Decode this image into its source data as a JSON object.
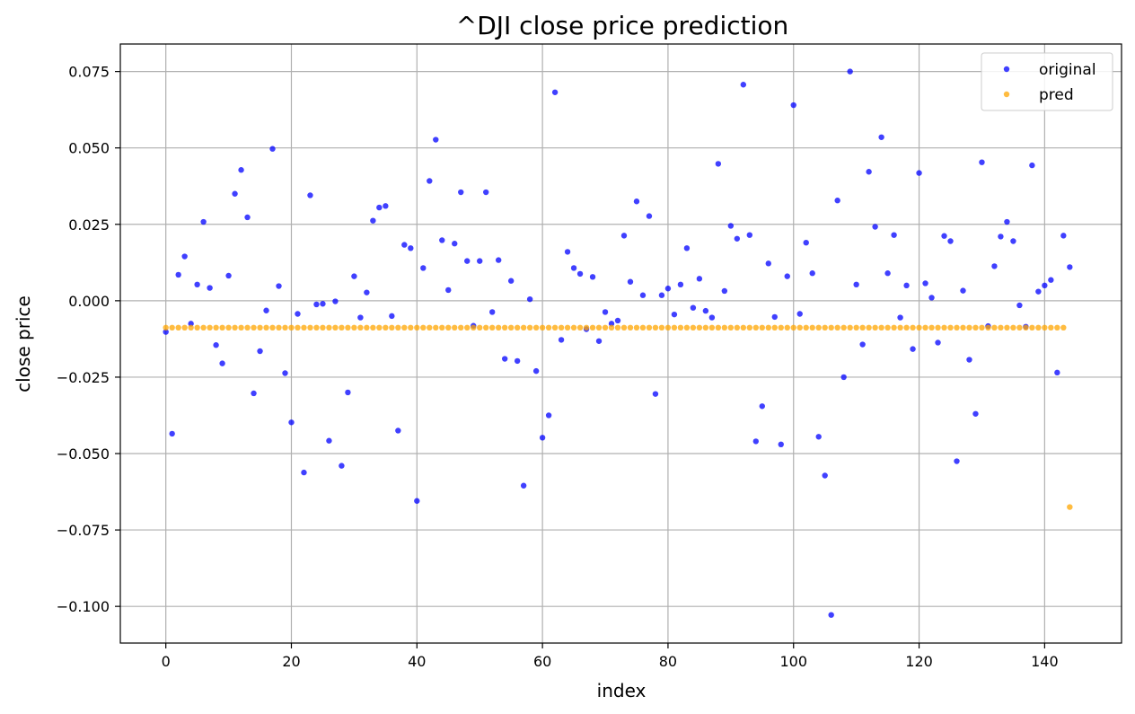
{
  "chart_data": {
    "type": "scatter",
    "title": "^DJI close price prediction",
    "xlabel": "index",
    "ylabel": "close price",
    "xlim": [
      -7.25,
      152.25
    ],
    "ylim": [
      -0.112,
      0.084
    ],
    "xticks": [
      0,
      20,
      40,
      60,
      80,
      100,
      120,
      140
    ],
    "xtick_labels": [
      "0",
      "20",
      "40",
      "60",
      "80",
      "100",
      "120",
      "140"
    ],
    "yticks": [
      0.075,
      0.05,
      0.025,
      0.0,
      -0.025,
      -0.05,
      -0.075,
      -0.1
    ],
    "ytick_labels": [
      "0.075",
      "0.050",
      "0.025",
      "0.000",
      "−0.025",
      "−0.050",
      "−0.075",
      "−0.100"
    ],
    "grid": true,
    "legend_position": "top-right",
    "series": [
      {
        "name": "original",
        "color": "#0000ff",
        "x": [
          0,
          1,
          2,
          3,
          4,
          5,
          6,
          7,
          8,
          9,
          10,
          11,
          12,
          13,
          14,
          15,
          16,
          17,
          18,
          19,
          20,
          21,
          22,
          23,
          24,
          25,
          26,
          27,
          28,
          29,
          30,
          31,
          32,
          33,
          34,
          35,
          36,
          37,
          38,
          39,
          40,
          41,
          42,
          43,
          44,
          45,
          46,
          47,
          48,
          49,
          50,
          51,
          52,
          53,
          54,
          55,
          56,
          57,
          58,
          59,
          60,
          61,
          62,
          63,
          64,
          65,
          66,
          67,
          68,
          69,
          70,
          71,
          72,
          73,
          74,
          75,
          76,
          77,
          78,
          79,
          80,
          81,
          82,
          83,
          84,
          85,
          86,
          87,
          88,
          89,
          90,
          91,
          92,
          93,
          94,
          95,
          96,
          97,
          98,
          99,
          100,
          101,
          102,
          103,
          104,
          105,
          106,
          107,
          108,
          109,
          110,
          111,
          112,
          113,
          114,
          115,
          116,
          117,
          118,
          119,
          120,
          121,
          122,
          123,
          124,
          125,
          126,
          127,
          128,
          129,
          130,
          131,
          132,
          133,
          134,
          135,
          136,
          137,
          138,
          139,
          140,
          141,
          142,
          143,
          144
        ],
        "y": [
          -0.0102,
          -0.0435,
          0.0085,
          0.0145,
          -0.0075,
          0.0053,
          0.0258,
          0.0042,
          -0.0145,
          -0.0205,
          0.0082,
          0.035,
          0.0428,
          0.0273,
          -0.0303,
          -0.0165,
          -0.0032,
          0.0497,
          0.0048,
          -0.0237,
          -0.0398,
          -0.0043,
          -0.0562,
          0.0345,
          -0.0012,
          -0.001,
          -0.0458,
          -0.0002,
          -0.054,
          -0.03,
          0.008,
          -0.0055,
          0.0027,
          0.0262,
          0.0305,
          0.031,
          -0.005,
          -0.0425,
          0.0183,
          0.0172,
          -0.0655,
          0.0107,
          0.0392,
          0.0527,
          0.0198,
          0.0035,
          0.0187,
          0.0355,
          0.013,
          -0.0082,
          0.013,
          0.0355,
          -0.0037,
          0.0133,
          -0.019,
          0.0065,
          -0.0197,
          -0.0605,
          0.0005,
          -0.023,
          -0.0448,
          -0.0375,
          0.0682,
          -0.0128,
          0.016,
          0.0107,
          0.0088,
          -0.0093,
          0.0078,
          -0.0132,
          -0.0037,
          -0.0075,
          -0.0065,
          0.0213,
          0.0062,
          0.0325,
          0.0018,
          0.0277,
          -0.0305,
          0.0018,
          0.004,
          -0.0045,
          0.0053,
          0.0172,
          -0.0023,
          0.0072,
          -0.0033,
          -0.0055,
          0.0448,
          0.0032,
          0.0245,
          0.0203,
          0.0707,
          0.0215,
          -0.046,
          -0.0345,
          0.0122,
          -0.0053,
          -0.047,
          0.008,
          0.064,
          -0.0043,
          0.019,
          0.009,
          -0.0445,
          -0.0572,
          -0.1028,
          0.0328,
          -0.025,
          0.075,
          0.0053,
          -0.0143,
          0.0422,
          0.0242,
          0.0535,
          0.009,
          0.0215,
          -0.0055,
          0.005,
          -0.0158,
          0.0418,
          0.0057,
          0.001,
          -0.0137,
          0.0212,
          0.0195,
          -0.0525,
          0.0033,
          -0.0193,
          -0.037,
          0.0453,
          -0.0083,
          0.0113,
          0.021,
          0.0258,
          0.0195,
          -0.0015,
          -0.0085,
          0.0443,
          0.003,
          0.005,
          0.0068,
          -0.0235,
          0.0213,
          0.011
        ]
      },
      {
        "name": "pred",
        "color": "#ffa500",
        "x": [
          0,
          1,
          2,
          3,
          4,
          5,
          6,
          7,
          8,
          9,
          10,
          11,
          12,
          13,
          14,
          15,
          16,
          17,
          18,
          19,
          20,
          21,
          22,
          23,
          24,
          25,
          26,
          27,
          28,
          29,
          30,
          31,
          32,
          33,
          34,
          35,
          36,
          37,
          38,
          39,
          40,
          41,
          42,
          43,
          44,
          45,
          46,
          47,
          48,
          49,
          50,
          51,
          52,
          53,
          54,
          55,
          56,
          57,
          58,
          59,
          60,
          61,
          62,
          63,
          64,
          65,
          66,
          67,
          68,
          69,
          70,
          71,
          72,
          73,
          74,
          75,
          76,
          77,
          78,
          79,
          80,
          81,
          82,
          83,
          84,
          85,
          86,
          87,
          88,
          89,
          90,
          91,
          92,
          93,
          94,
          95,
          96,
          97,
          98,
          99,
          100,
          101,
          102,
          103,
          104,
          105,
          106,
          107,
          108,
          109,
          110,
          111,
          112,
          113,
          114,
          115,
          116,
          117,
          118,
          119,
          120,
          121,
          122,
          123,
          124,
          125,
          126,
          127,
          128,
          129,
          130,
          131,
          132,
          133,
          134,
          135,
          136,
          137,
          138,
          139,
          140,
          141,
          142,
          143,
          144
        ],
        "y": [
          -0.0088,
          -0.0088,
          -0.0088,
          -0.0088,
          -0.0088,
          -0.0088,
          -0.0088,
          -0.0088,
          -0.0088,
          -0.0088,
          -0.0088,
          -0.0088,
          -0.0088,
          -0.0088,
          -0.0088,
          -0.0088,
          -0.0088,
          -0.0088,
          -0.0088,
          -0.0088,
          -0.0088,
          -0.0088,
          -0.0088,
          -0.0088,
          -0.0088,
          -0.0088,
          -0.0088,
          -0.0088,
          -0.0088,
          -0.0088,
          -0.0088,
          -0.0088,
          -0.0088,
          -0.0088,
          -0.0088,
          -0.0088,
          -0.0088,
          -0.0088,
          -0.0088,
          -0.0088,
          -0.0088,
          -0.0088,
          -0.0088,
          -0.0088,
          -0.0088,
          -0.0088,
          -0.0088,
          -0.0088,
          -0.0088,
          -0.0088,
          -0.0088,
          -0.0088,
          -0.0088,
          -0.0088,
          -0.0088,
          -0.0088,
          -0.0088,
          -0.0088,
          -0.0088,
          -0.0088,
          -0.0088,
          -0.0088,
          -0.0088,
          -0.0088,
          -0.0088,
          -0.0088,
          -0.0088,
          -0.0088,
          -0.0088,
          -0.0088,
          -0.0088,
          -0.0088,
          -0.0088,
          -0.0088,
          -0.0088,
          -0.0088,
          -0.0088,
          -0.0088,
          -0.0088,
          -0.0088,
          -0.0088,
          -0.0088,
          -0.0088,
          -0.0088,
          -0.0088,
          -0.0088,
          -0.0088,
          -0.0088,
          -0.0088,
          -0.0088,
          -0.0088,
          -0.0088,
          -0.0088,
          -0.0088,
          -0.0088,
          -0.0088,
          -0.0088,
          -0.0088,
          -0.0088,
          -0.0088,
          -0.0088,
          -0.0088,
          -0.0088,
          -0.0088,
          -0.0088,
          -0.0088,
          -0.0088,
          -0.0088,
          -0.0088,
          -0.0088,
          -0.0088,
          -0.0088,
          -0.0088,
          -0.0088,
          -0.0088,
          -0.0088,
          -0.0088,
          -0.0088,
          -0.0088,
          -0.0088,
          -0.0088,
          -0.0088,
          -0.0088,
          -0.0088,
          -0.0088,
          -0.0088,
          -0.0088,
          -0.0088,
          -0.0088,
          -0.0088,
          -0.0088,
          -0.0088,
          -0.0088,
          -0.0088,
          -0.0088,
          -0.0088,
          -0.0088,
          -0.0088,
          -0.0088,
          -0.0088,
          -0.0088,
          -0.0088,
          -0.0088,
          -0.0088,
          -0.0675
        ]
      }
    ]
  }
}
